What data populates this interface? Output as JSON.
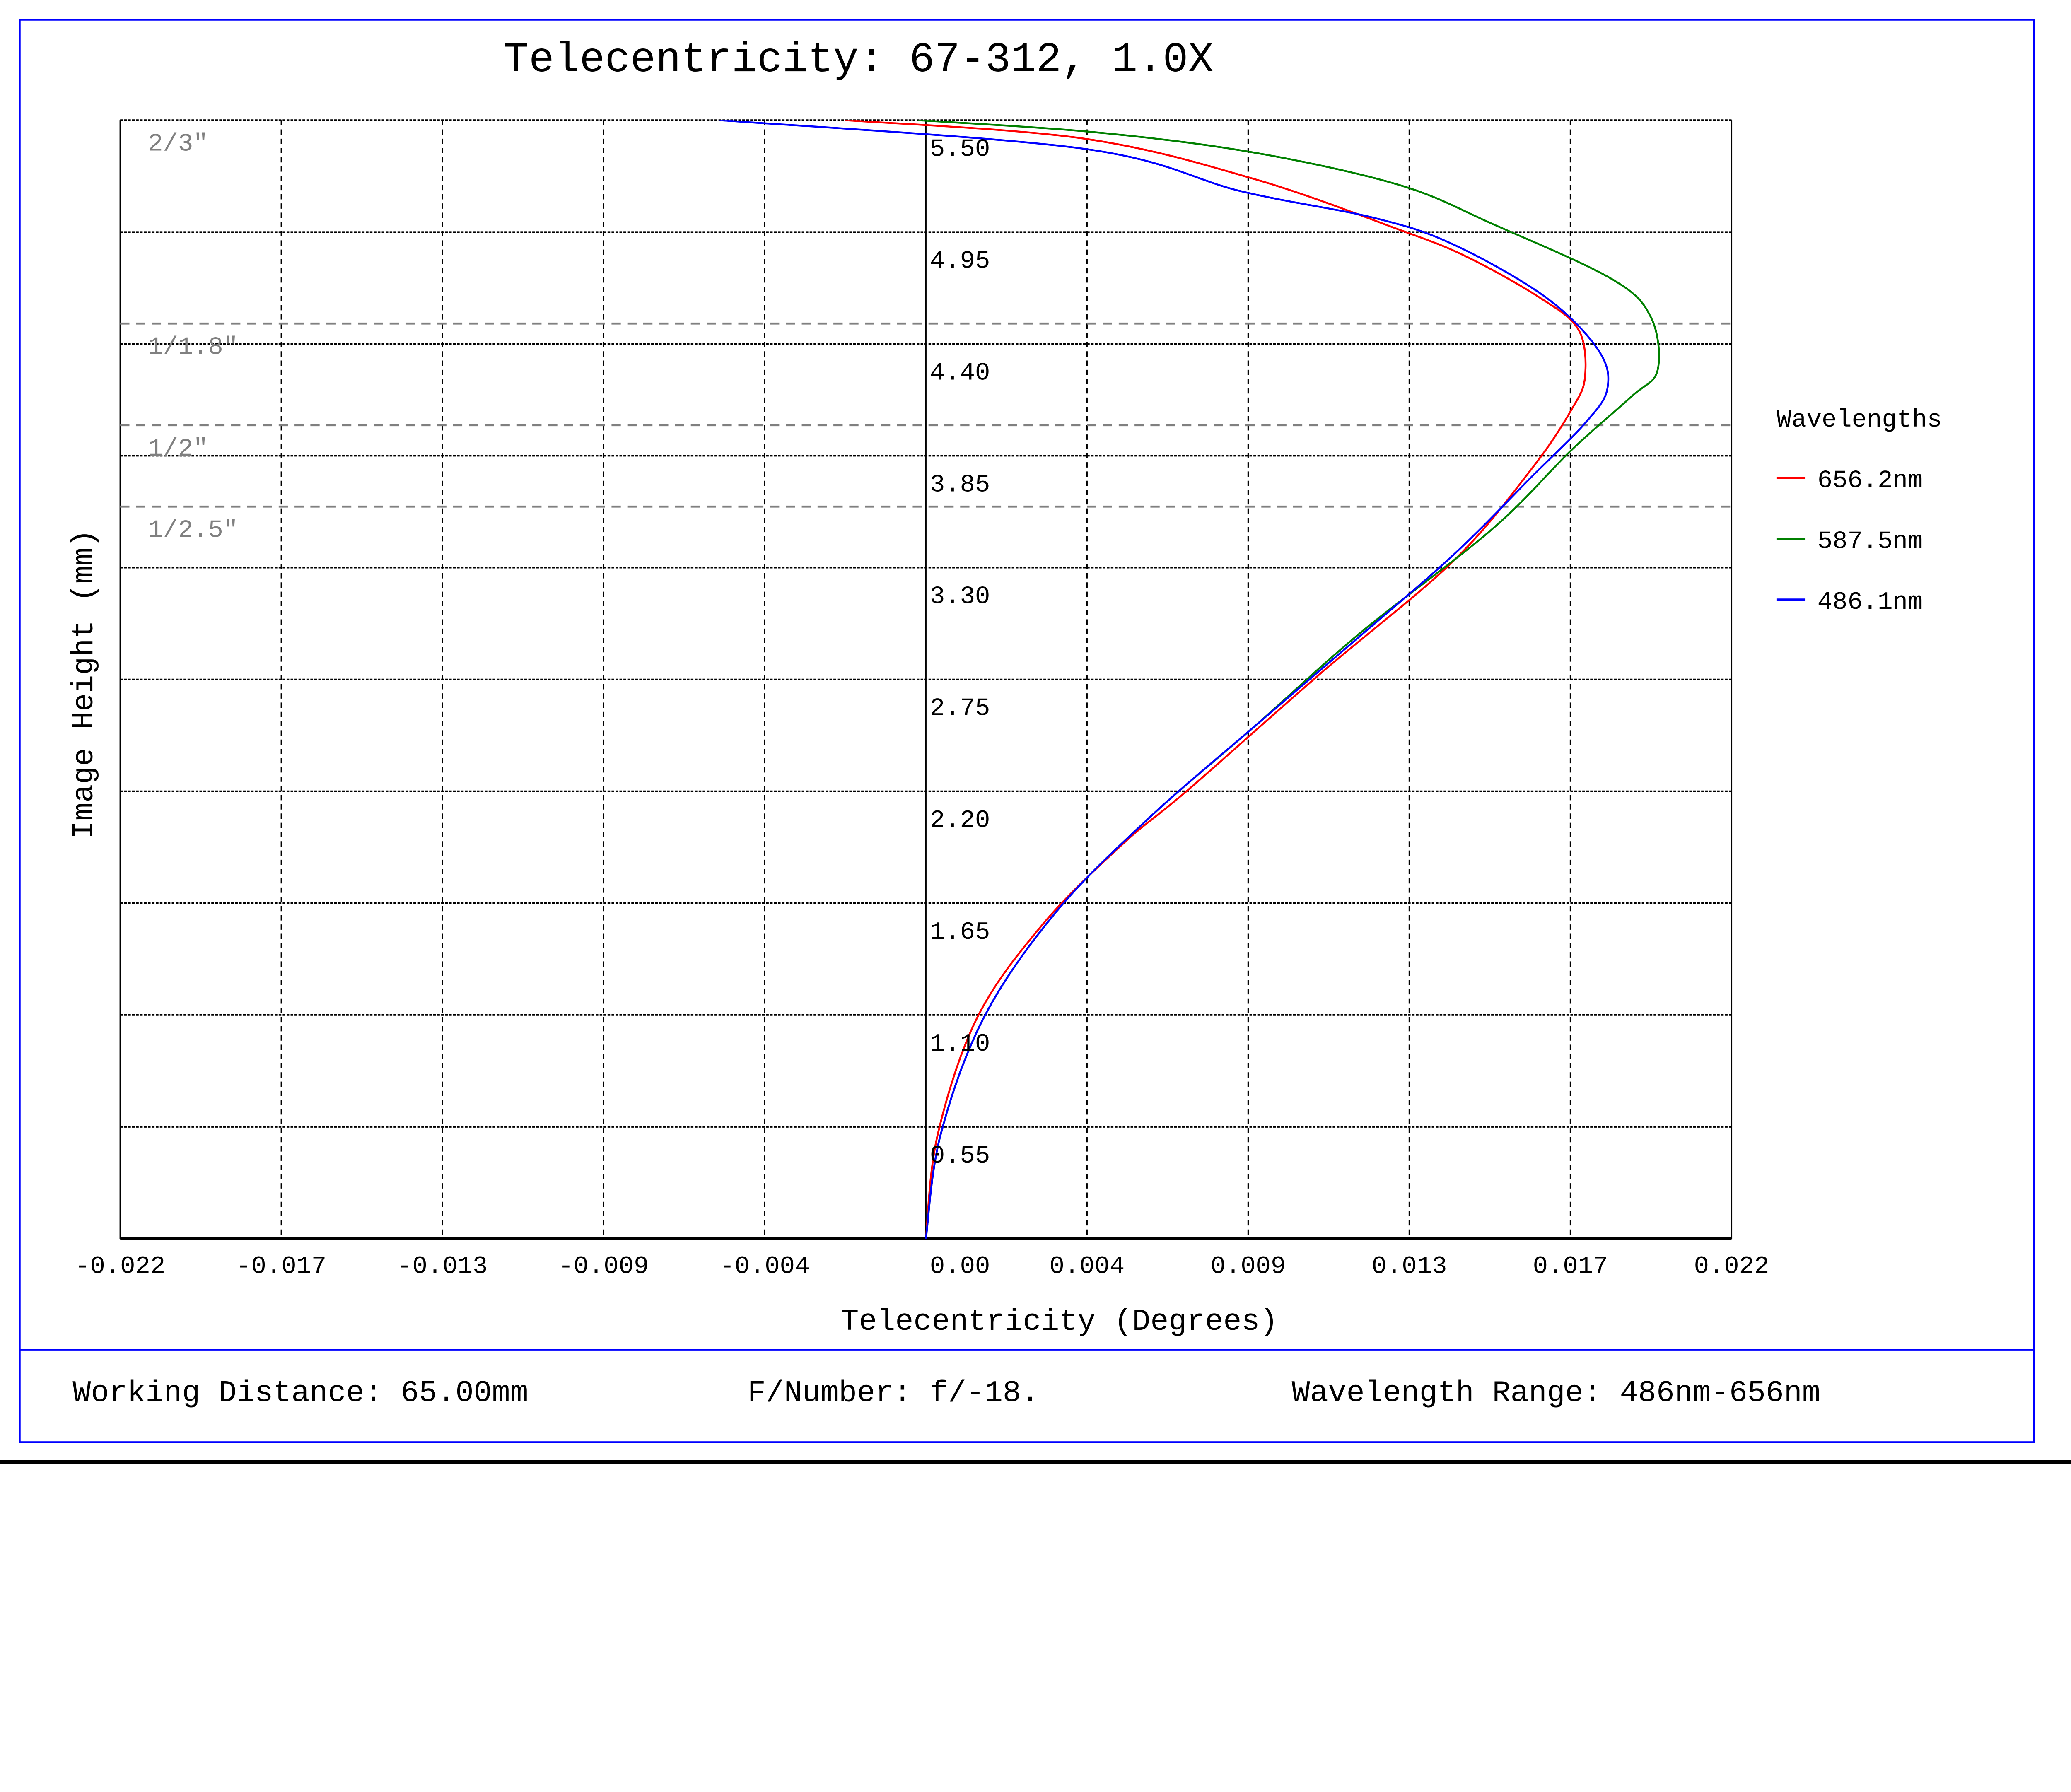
{
  "chart_data": {
    "type": "line",
    "title": "Telecentricity: 67-312, 1.0X",
    "xlabel": "Telecentricity (Degrees)",
    "ylabel": "Image Height (mm)",
    "xlim": [
      -0.022,
      0.022
    ],
    "ylim": [
      0,
      5.5
    ],
    "grid": true,
    "x_tick_labels": [
      "-0.022",
      "-0.017",
      "-0.013",
      "-0.009",
      "-0.004",
      "0.00",
      "0.004",
      "0.009",
      "0.013",
      "0.017",
      "0.022"
    ],
    "y_tick_labels": [
      "0.55",
      "1.10",
      "1.65",
      "2.20",
      "2.75",
      "3.30",
      "3.85",
      "4.40",
      "4.95",
      "5.50"
    ],
    "legend_title": "Wavelengths",
    "legend_position": "right",
    "sensor_lines": [
      {
        "label": "2/3\"",
        "y": 5.5
      },
      {
        "label": "1/1.8\"",
        "y": 4.5
      },
      {
        "label": "1/2\"",
        "y": 4.0
      },
      {
        "label": "1/2.5\"",
        "y": 3.6
      }
    ],
    "series": [
      {
        "name": "656.2nm",
        "color": "#ff0000",
        "points": [
          [
            0,
            0
          ],
          [
            0.00032,
            0.51
          ],
          [
            0.00141,
            1.09
          ],
          [
            0.00321,
            1.55
          ],
          [
            0.00537,
            1.94
          ],
          [
            0.00718,
            2.21
          ],
          [
            0.01078,
            2.78
          ],
          [
            0.01439,
            3.33
          ],
          [
            0.01656,
            3.79
          ],
          [
            0.01764,
            4.08
          ],
          [
            0.018,
            4.24
          ],
          [
            0.01782,
            4.47
          ],
          [
            0.01674,
            4.63
          ],
          [
            0.01475,
            4.83
          ],
          [
            0.01295,
            4.96
          ],
          [
            0.00898,
            5.21
          ],
          [
            0.00429,
            5.41
          ],
          [
            -0.0022,
            5.5
          ]
        ]
      },
      {
        "name": "587.5nm",
        "color": "#008000",
        "points": [
          [
            0,
            0
          ],
          [
            0.0004,
            0.51
          ],
          [
            0.00159,
            1.09
          ],
          [
            0.00357,
            1.61
          ],
          [
            0.0061,
            2.07
          ],
          [
            0.00898,
            2.52
          ],
          [
            0.01187,
            2.98
          ],
          [
            0.01547,
            3.49
          ],
          [
            0.01764,
            3.88
          ],
          [
            0.01926,
            4.14
          ],
          [
            0.01998,
            4.27
          ],
          [
            0.0198,
            4.53
          ],
          [
            0.01872,
            4.72
          ],
          [
            0.01547,
            4.99
          ],
          [
            0.01295,
            5.18
          ],
          [
            0.00898,
            5.34
          ],
          [
            0.00465,
            5.44
          ],
          [
            -0.00022,
            5.5
          ]
        ]
      },
      {
        "name": "486.1nm",
        "color": "#0000ff",
        "points": [
          [
            0,
            0
          ],
          [
            0.0004,
            0.51
          ],
          [
            0.00159,
            1.09
          ],
          [
            0.00357,
            1.61
          ],
          [
            0.0061,
            2.07
          ],
          [
            0.00898,
            2.52
          ],
          [
            0.01151,
            2.91
          ],
          [
            0.01439,
            3.36
          ],
          [
            0.01656,
            3.75
          ],
          [
            0.018,
            4.01
          ],
          [
            0.01861,
            4.18
          ],
          [
            0.01836,
            4.37
          ],
          [
            0.01692,
            4.63
          ],
          [
            0.01439,
            4.89
          ],
          [
            0.01223,
            5.02
          ],
          [
            0.00862,
            5.15
          ],
          [
            0.00429,
            5.36
          ],
          [
            -0.00563,
            5.5
          ]
        ]
      }
    ]
  },
  "footer": {
    "working_distance": "Working Distance: 65.00mm",
    "f_number": "F/Number: f/-18.",
    "wavelength_range": "Wavelength Range: 486nm-656nm"
  },
  "colors": {
    "frame": "#0000ff",
    "sensor_line": "#808080"
  }
}
